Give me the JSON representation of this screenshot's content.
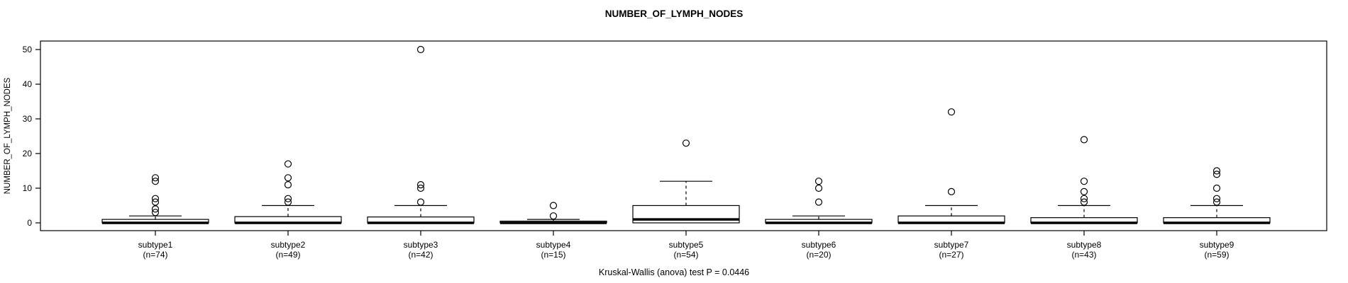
{
  "title": "NUMBER_OF_LYMPH_NODES",
  "y_axis_label": "NUMBER_OF_LYMPH_NODES",
  "caption": "Kruskal-Wallis (anova) test P = 0.0446",
  "colors": {
    "stroke": "#000000",
    "background": "#ffffff",
    "box_fill": "#ffffff"
  },
  "chart_data": {
    "type": "boxplot",
    "title": "NUMBER_OF_LYMPH_NODES",
    "ylabel": "NUMBER_OF_LYMPH_NODES",
    "xlabel": "",
    "ylim": [
      -2.2,
      52.4
    ],
    "yticks": [
      0,
      10,
      20,
      30,
      40,
      50
    ],
    "grid": false,
    "legend": "none",
    "annotation": "Kruskal-Wallis (anova) test P = 0.0446",
    "groups": [
      {
        "label": "subtype1",
        "count_label": "(n=74)",
        "n": 74,
        "q1": 0,
        "median": 0,
        "q3": 1,
        "whisker_low": 0,
        "whisker_high": 2,
        "outliers": [
          3,
          4,
          6,
          7,
          12,
          13
        ]
      },
      {
        "label": "subtype2",
        "count_label": "(n=49)",
        "n": 49,
        "q1": 0,
        "median": 0,
        "q3": 1.8,
        "whisker_low": 0,
        "whisker_high": 5,
        "outliers": [
          6,
          7,
          11,
          13,
          17
        ]
      },
      {
        "label": "subtype3",
        "count_label": "(n=42)",
        "n": 42,
        "q1": 0,
        "median": 0,
        "q3": 1.7,
        "whisker_low": 0,
        "whisker_high": 5,
        "outliers": [
          6,
          10,
          11,
          50
        ]
      },
      {
        "label": "subtype4",
        "count_label": "(n=15)",
        "n": 15,
        "q1": 0,
        "median": 0,
        "q3": 0.5,
        "whisker_low": 0,
        "whisker_high": 1,
        "outliers": [
          2,
          5
        ]
      },
      {
        "label": "subtype5",
        "count_label": "(n=54)",
        "n": 54,
        "q1": 0,
        "median": 1,
        "q3": 5,
        "whisker_low": 0,
        "whisker_high": 12,
        "outliers": [
          23
        ]
      },
      {
        "label": "subtype6",
        "count_label": "(n=20)",
        "n": 20,
        "q1": 0,
        "median": 0,
        "q3": 1,
        "whisker_low": 0,
        "whisker_high": 2,
        "outliers": [
          6,
          10,
          12
        ]
      },
      {
        "label": "subtype7",
        "count_label": "(n=27)",
        "n": 27,
        "q1": 0,
        "median": 0,
        "q3": 2,
        "whisker_low": 0,
        "whisker_high": 5,
        "outliers": [
          9,
          32
        ]
      },
      {
        "label": "subtype8",
        "count_label": "(n=43)",
        "n": 43,
        "q1": 0,
        "median": 0,
        "q3": 1.5,
        "whisker_low": 0,
        "whisker_high": 5,
        "outliers": [
          6,
          7,
          9,
          12,
          24
        ]
      },
      {
        "label": "subtype9",
        "count_label": "(n=59)",
        "n": 59,
        "q1": 0,
        "median": 0,
        "q3": 1.5,
        "whisker_low": 0,
        "whisker_high": 5,
        "outliers": [
          6,
          7,
          10,
          14,
          15
        ]
      }
    ]
  }
}
